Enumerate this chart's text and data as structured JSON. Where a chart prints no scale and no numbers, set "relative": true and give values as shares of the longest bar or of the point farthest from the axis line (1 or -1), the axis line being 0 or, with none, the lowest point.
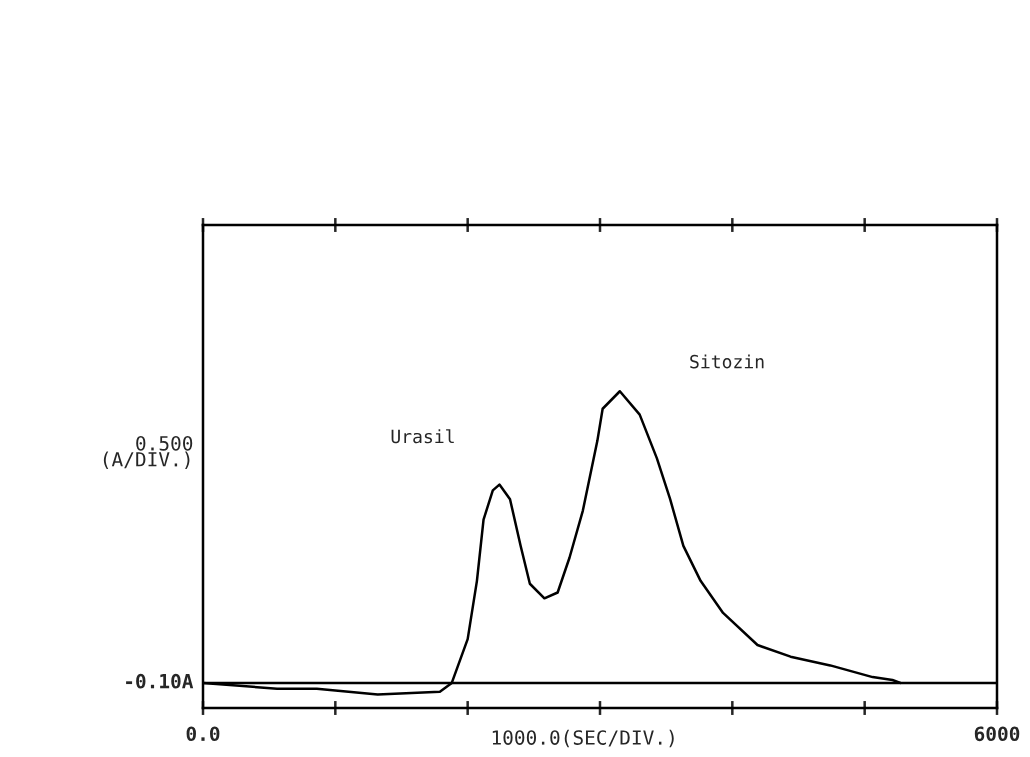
{
  "chart_data": {
    "type": "line",
    "relative": true,
    "xlabel": "1000.0(SEC/DIV.)",
    "ylabel": "0.500\n(A/DIV.)",
    "x": [
      0,
      560,
      860,
      1320,
      1790,
      1880,
      2000,
      2070,
      2120,
      2190,
      2240,
      2320,
      2400,
      2470,
      2580,
      2680,
      2770,
      2870,
      2980,
      3020,
      3150,
      3300,
      3430,
      3530,
      3630,
      3760,
      3930,
      4190,
      4440,
      4740,
      5060,
      5210,
      5270
    ],
    "series": [
      {
        "color": "#000000",
        "values": [
          0,
          -0.02,
          -0.02,
          -0.04,
          -0.03,
          0,
          0.15,
          0.35,
          0.56,
          0.66,
          0.68,
          0.63,
          0.47,
          0.34,
          0.29,
          0.31,
          0.43,
          0.59,
          0.83,
          0.94,
          1,
          0.92,
          0.77,
          0.63,
          0.47,
          0.35,
          0.24,
          0.13,
          0.09,
          0.06,
          0.02,
          0.01,
          0
        ]
      }
    ],
    "annotations": [
      "Urasil",
      "Sitozin"
    ],
    "ref_lines": [
      {
        "axis": "y",
        "value": 0,
        "label": "-0.10A",
        "color": "#000000"
      }
    ],
    "xlim": [
      0,
      6000
    ],
    "xticks": [
      {
        "value": 0,
        "label": "0.0"
      },
      {
        "value": 1000,
        "label": null
      },
      {
        "value": 2000,
        "label": null
      },
      {
        "value": 3000,
        "label": null
      },
      {
        "value": 4000,
        "label": null
      },
      {
        "value": 5000,
        "label": null
      },
      6000
    ],
    "grid": false,
    "legend": false
  }
}
